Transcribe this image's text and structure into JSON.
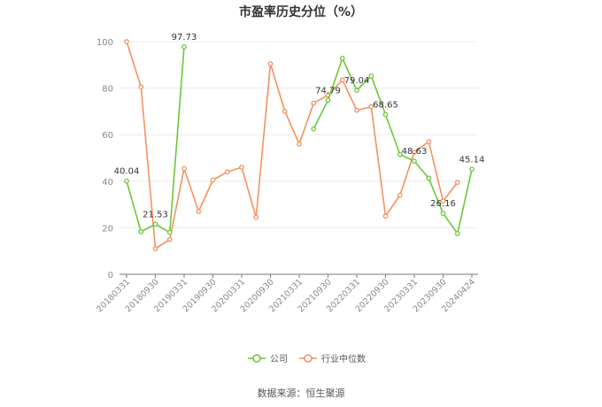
{
  "chart_data": {
    "type": "line",
    "title": "市盈率历史分位（%）",
    "source": "数据来源：恒生聚源",
    "x": [
      "20180331",
      "20180630",
      "20180930",
      "20181231",
      "20190331",
      "20190630",
      "20190930",
      "20191231",
      "20200331",
      "20200630",
      "20200930",
      "20201231",
      "20210331",
      "20210630",
      "20210930",
      "20211231",
      "20220331",
      "20220630",
      "20220930",
      "20221231",
      "20230331",
      "20230630",
      "20230930",
      "20231231",
      "20240424"
    ],
    "x_tick_labels": [
      "20180331",
      "20180930",
      "20190331",
      "20190930",
      "20200331",
      "20200930",
      "20210331",
      "20210930",
      "20220331",
      "20220930",
      "20230331",
      "20230930",
      "20240424"
    ],
    "yticks": [
      0,
      20,
      40,
      60,
      80,
      100
    ],
    "ylim": [
      0,
      100
    ],
    "grid": true,
    "legend": "bottom-center",
    "series": [
      {
        "name": "公司",
        "color": "#6cc63a",
        "values": [
          40.04,
          18.3,
          21.53,
          18.0,
          97.73,
          null,
          null,
          null,
          null,
          null,
          null,
          null,
          null,
          62.5,
          74.79,
          92.8,
          79.04,
          85.2,
          68.65,
          51.5,
          48.63,
          41.3,
          26.16,
          17.5,
          45.14
        ],
        "labels": [
          {
            "index": 0,
            "text": "40.04"
          },
          {
            "index": 2,
            "text": "21.53"
          },
          {
            "index": 4,
            "text": "97.73"
          },
          {
            "index": 14,
            "text": "74.79"
          },
          {
            "index": 16,
            "text": "79.04"
          },
          {
            "index": 18,
            "text": "68.65"
          },
          {
            "index": 20,
            "text": "48.63"
          },
          {
            "index": 22,
            "text": "26.16"
          },
          {
            "index": 24,
            "text": "45.14"
          }
        ]
      },
      {
        "name": "行业中位数",
        "color": "#f4915d",
        "values": [
          100.0,
          80.5,
          11.0,
          15.0,
          45.5,
          27.0,
          40.5,
          44.0,
          46.0,
          24.5,
          90.5,
          70.0,
          56.0,
          73.5,
          77.0,
          83.5,
          70.5,
          72.0,
          25.0,
          34.0,
          52.5,
          57.0,
          31.5,
          39.5,
          null
        ]
      }
    ]
  }
}
